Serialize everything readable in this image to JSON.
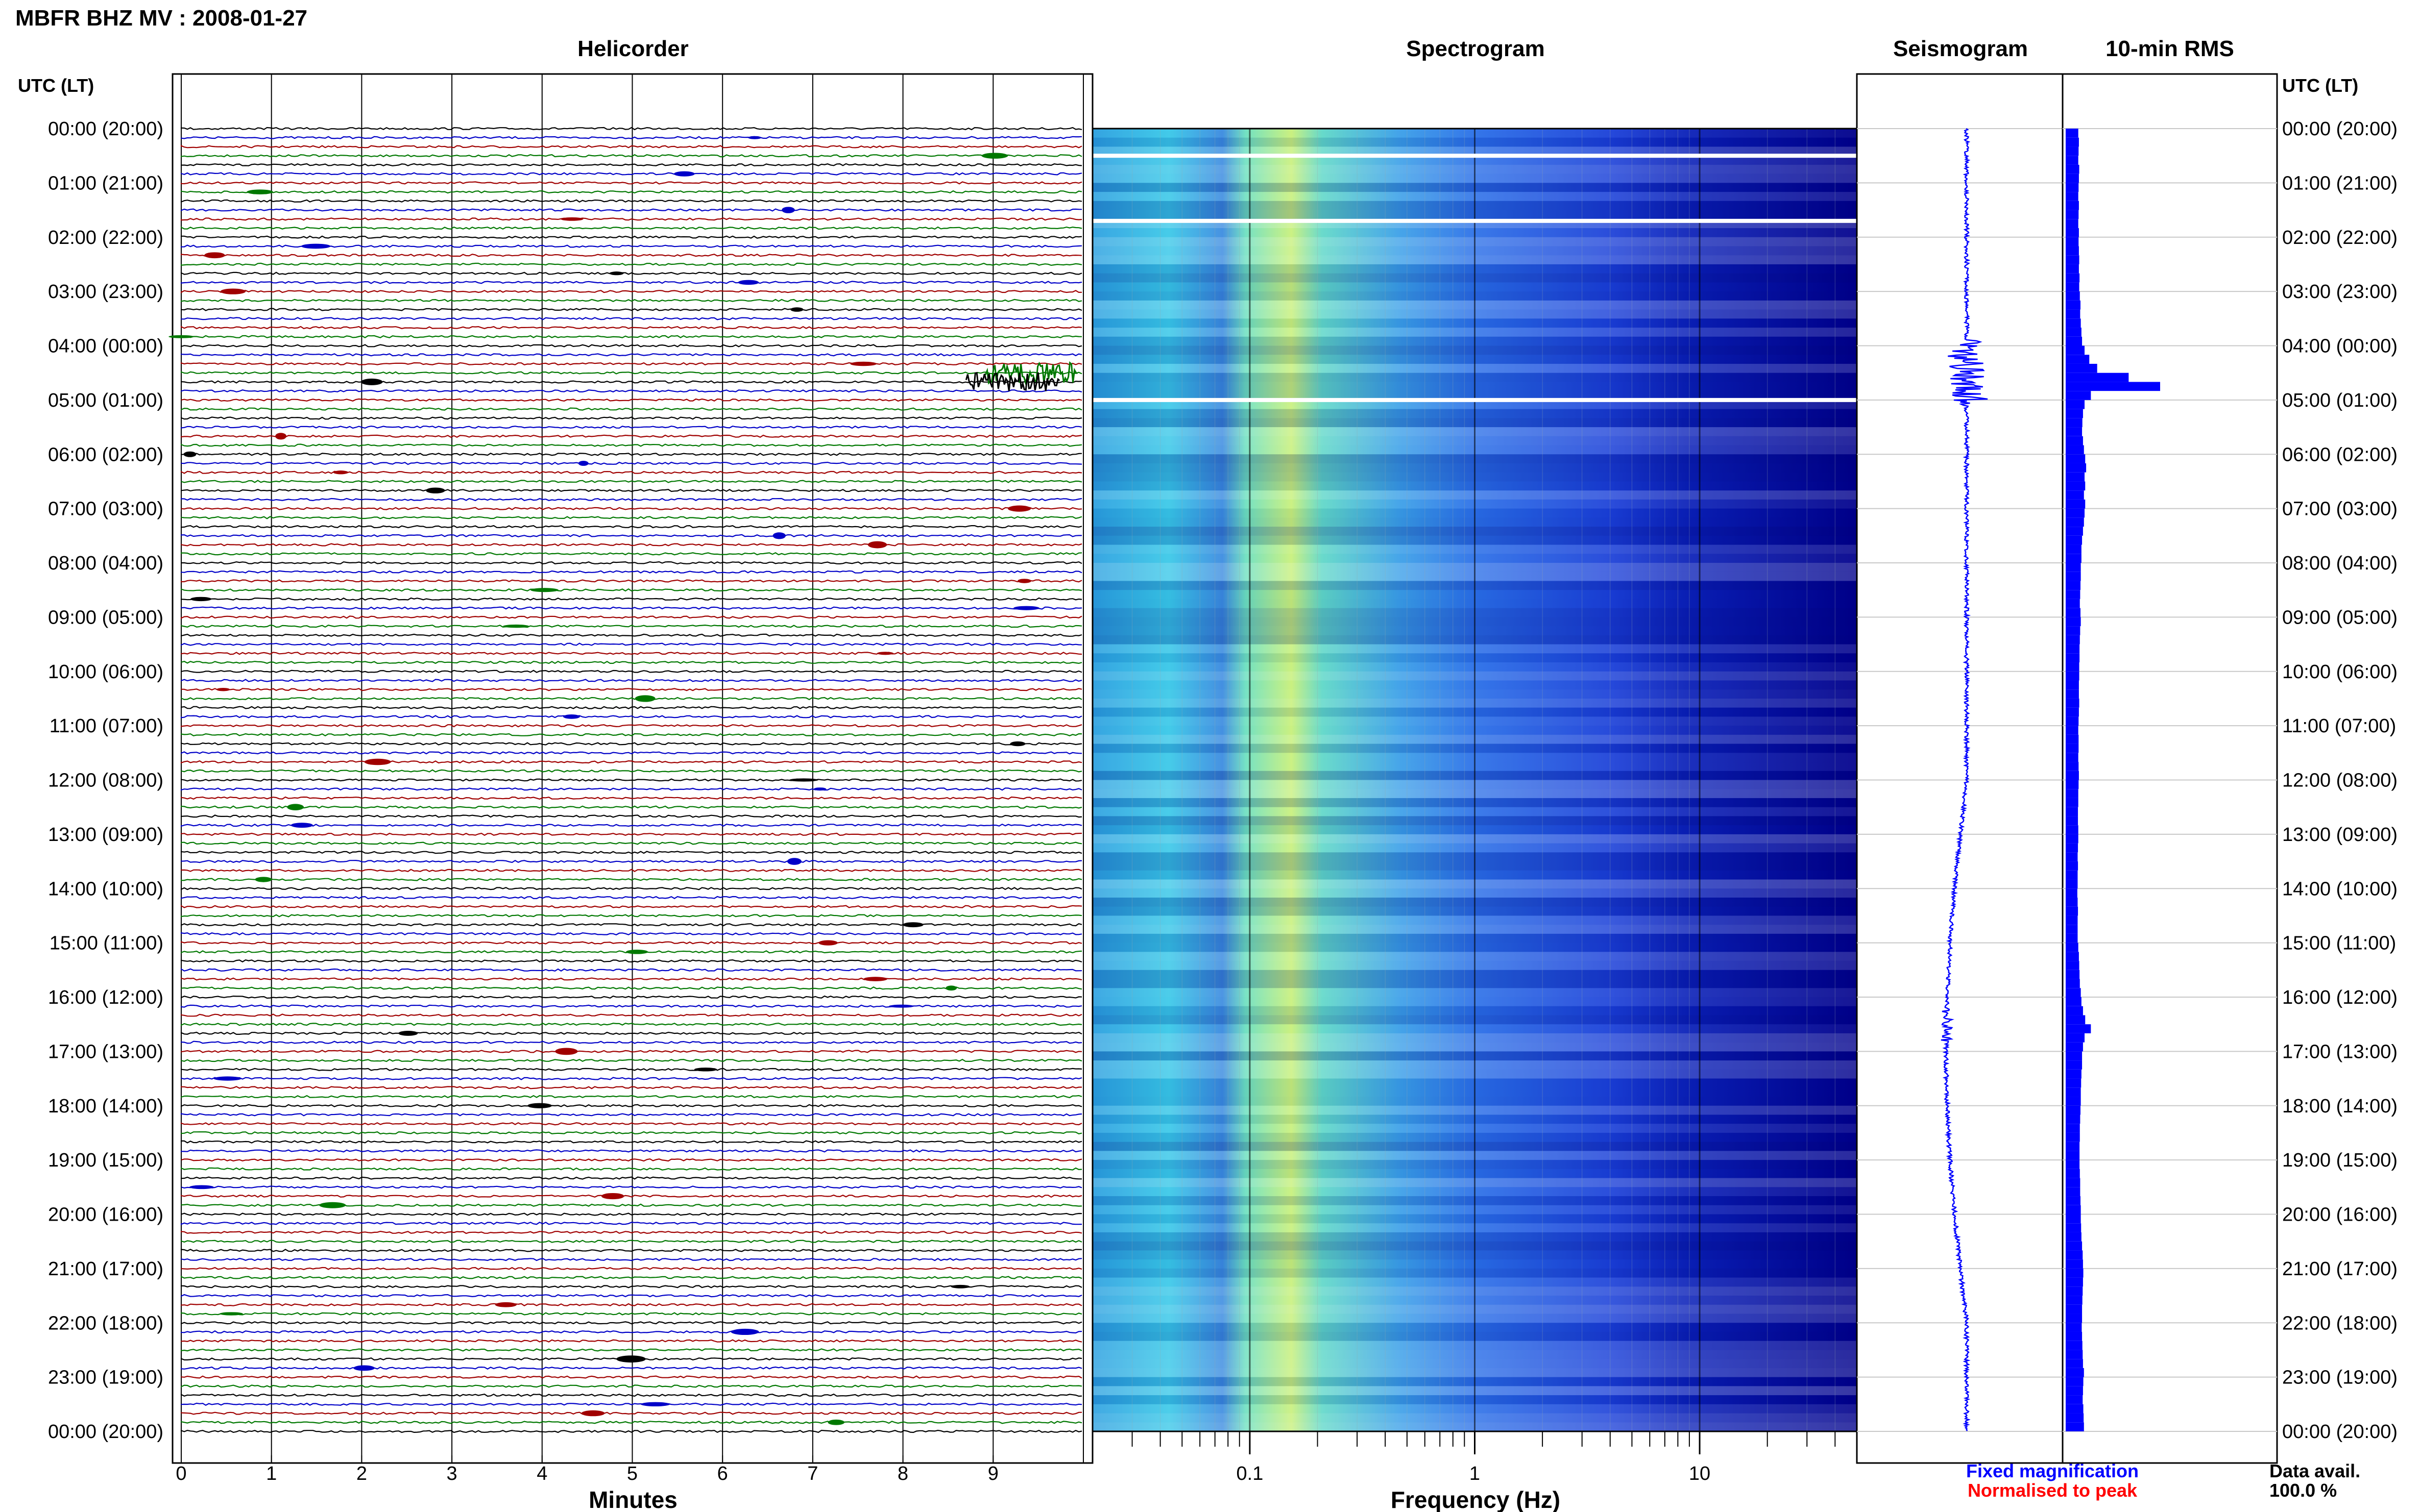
{
  "header": {
    "title": "MBFR BHZ MV : 2008-01-27"
  },
  "panels": {
    "helicorder": "Helicorder",
    "spectrogram": "Spectrogram",
    "seismogram": "Seismogram",
    "rms": "10-min RMS"
  },
  "axis_labels": {
    "time_left": "UTC (LT)",
    "time_right": "UTC (LT)",
    "helicorder_x": "Minutes",
    "spectrogram_x": "Frequency (Hz)"
  },
  "legend": {
    "fixed": "Fixed magnification",
    "fixed_color": "#0000ff",
    "normalised": "Normalised to peak",
    "normalised_color": "#ff0000"
  },
  "data_availability": {
    "label": "Data avail.",
    "value": "100.0 %"
  },
  "colors": {
    "trace_cycle": [
      "#000000",
      "#0000c8",
      "#a00000",
      "#007800"
    ],
    "seismogram": "#0000ff",
    "rms_bar": "#0000ff",
    "spectrogram_low": "#2a6fe8",
    "spectrogram_mid": "#9df08a",
    "spectrogram_high": "#00008b"
  },
  "chart_data": [
    {
      "type": "line",
      "name": "helicorder",
      "title": "Helicorder",
      "xlabel": "Minutes",
      "x_ticks": [
        "0",
        "1",
        "2",
        "3",
        "4",
        "5",
        "6",
        "7",
        "8",
        "9"
      ],
      "xlim": [
        0,
        10
      ],
      "row_minutes": 10,
      "rows": 144,
      "y_ticks": [
        "00:00 (20:00)",
        "01:00 (21:00)",
        "02:00 (22:00)",
        "03:00 (23:00)",
        "04:00 (00:00)",
        "05:00 (01:00)",
        "06:00 (02:00)",
        "07:00 (03:00)",
        "08:00 (04:00)",
        "09:00 (05:00)",
        "10:00 (06:00)",
        "11:00 (07:00)",
        "12:00 (08:00)",
        "13:00 (09:00)",
        "14:00 (10:00)",
        "15:00 (11:00)",
        "16:00 (12:00)",
        "17:00 (13:00)",
        "18:00 (14:00)",
        "19:00 (15:00)",
        "20:00 (16:00)",
        "21:00 (17:00)",
        "22:00 (18:00)",
        "23:00 (19:00)",
        "00:00 (20:00)"
      ],
      "events": [
        {
          "row": 27,
          "minute": 9.4,
          "amplitude": "large"
        },
        {
          "row": 28,
          "minute": 9.2,
          "amplitude": "large"
        }
      ]
    },
    {
      "type": "heatmap",
      "name": "spectrogram",
      "title": "Spectrogram",
      "xlabel": "Frequency (Hz)",
      "x_scale": "log",
      "xlim": [
        0.02,
        50
      ],
      "x_ticks": [
        "0.1",
        "1",
        "10"
      ],
      "band_peak_hz": [
        0.15,
        0.3
      ],
      "gaps_utc_hours": [
        0.5,
        1.7,
        5.0
      ]
    },
    {
      "type": "line",
      "name": "seismogram",
      "title": "Seismogram",
      "y": "24-hour compressed trace",
      "notable_hours_utc": [
        4.5,
        16.5
      ]
    },
    {
      "type": "bar",
      "name": "rms",
      "title": "10-min RMS",
      "orientation": "horizontal",
      "bins": 144,
      "values": [
        0.4,
        0.42,
        0.41,
        0.4,
        0.43,
        0.42,
        0.41,
        0.4,
        0.42,
        0.41,
        0.4,
        0.42,
        0.41,
        0.42,
        0.43,
        0.42,
        0.44,
        0.43,
        0.45,
        0.47,
        0.46,
        0.48,
        0.5,
        0.52,
        0.6,
        0.75,
        1.0,
        2.0,
        3.0,
        0.8,
        0.6,
        0.55,
        0.53,
        0.52,
        0.55,
        0.58,
        0.62,
        0.65,
        0.6,
        0.62,
        0.58,
        0.62,
        0.6,
        0.58,
        0.55,
        0.52,
        0.5,
        0.5,
        0.48,
        0.48,
        0.47,
        0.46,
        0.45,
        0.47,
        0.48,
        0.46,
        0.45,
        0.44,
        0.44,
        0.43,
        0.43,
        0.42,
        0.42,
        0.43,
        0.42,
        0.41,
        0.4,
        0.41,
        0.41,
        0.4,
        0.41,
        0.42,
        0.41,
        0.4,
        0.4,
        0.39,
        0.39,
        0.4,
        0.4,
        0.39,
        0.38,
        0.39,
        0.38,
        0.38,
        0.37,
        0.38,
        0.39,
        0.38,
        0.38,
        0.38,
        0.4,
        0.42,
        0.43,
        0.44,
        0.45,
        0.48,
        0.5,
        0.55,
        0.62,
        0.8,
        0.6,
        0.55,
        0.52,
        0.52,
        0.5,
        0.49,
        0.48,
        0.48,
        0.47,
        0.46,
        0.45,
        0.45,
        0.44,
        0.44,
        0.44,
        0.45,
        0.46,
        0.46,
        0.47,
        0.48,
        0.48,
        0.49,
        0.5,
        0.52,
        0.54,
        0.55,
        0.56,
        0.55,
        0.54,
        0.53,
        0.52,
        0.52,
        0.51,
        0.52,
        0.53,
        0.54,
        0.55,
        0.58,
        0.56,
        0.55,
        0.54,
        0.56,
        0.57,
        0.58
      ]
    }
  ]
}
